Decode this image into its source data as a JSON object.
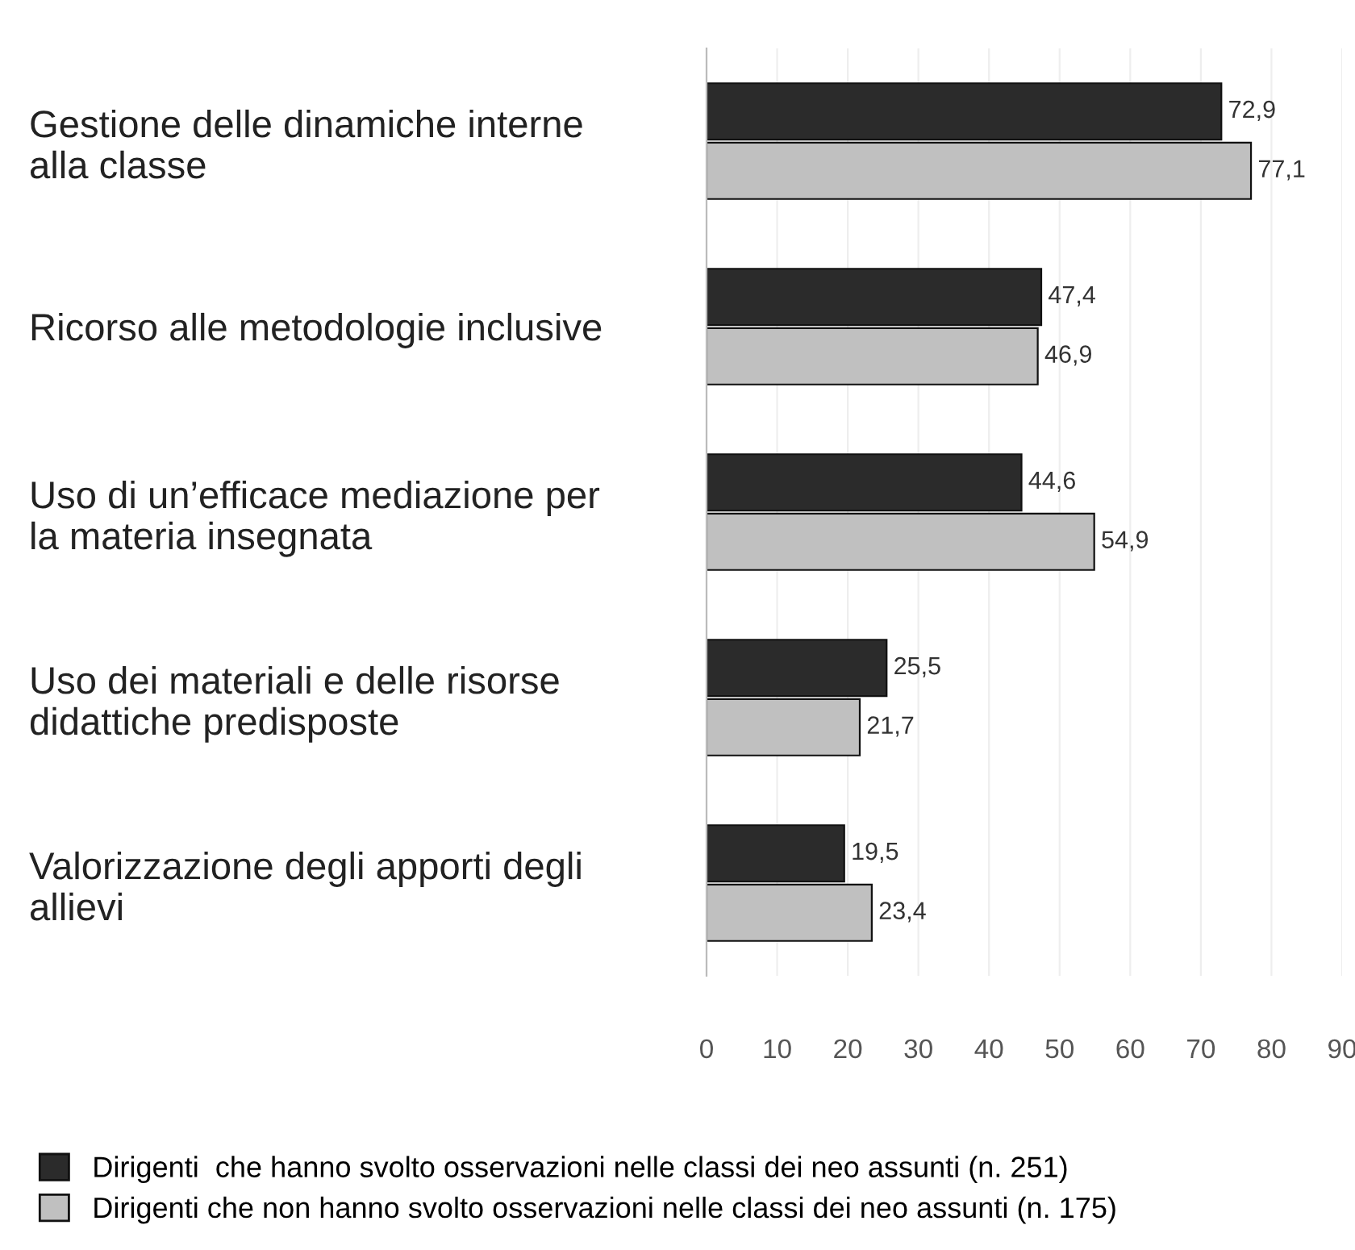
{
  "chart_data": {
    "type": "bar",
    "orientation": "horizontal",
    "categories": [
      "Gestione delle dinamiche interne\nalla classe",
      "Ricorso alle metodologie inclusive",
      "Uso di un’efficace mediazione per\nla materia insegnata",
      "Uso dei materiali e delle risorse\ndidattiche predisposte",
      "Valorizzazione degli apporti degli\nallievi"
    ],
    "series": [
      {
        "name": "Dirigenti  che hanno svolto osservazioni nelle classi dei neo assunti (n. 251)",
        "color": "#2b2b2b",
        "values": [
          72.9,
          47.4,
          44.6,
          25.5,
          19.5
        ],
        "value_labels": [
          "72,9",
          "47,4",
          "44,6",
          "25,5",
          "19,5"
        ]
      },
      {
        "name": "Dirigenti che non hanno svolto osservazioni nelle classi dei neo assunti (n. 175)",
        "color": "#c0c0c0",
        "values": [
          77.1,
          46.9,
          54.9,
          21.7,
          23.4
        ],
        "value_labels": [
          "77,1",
          "46,9",
          "54,9",
          "21,7",
          "23,4"
        ]
      }
    ],
    "xlim": [
      0,
      90
    ],
    "xticks": [
      0,
      10,
      20,
      30,
      40,
      50,
      60,
      70,
      80,
      90
    ],
    "grid": "x",
    "legend": "bottom"
  }
}
